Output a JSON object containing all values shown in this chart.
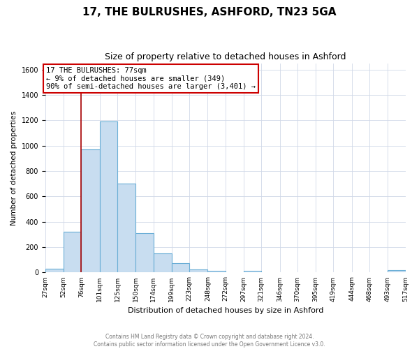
{
  "title": "17, THE BULRUSHES, ASHFORD, TN23 5GA",
  "subtitle": "Size of property relative to detached houses in Ashford",
  "xlabel": "Distribution of detached houses by size in Ashford",
  "ylabel": "Number of detached properties",
  "bin_edges": [
    27,
    52,
    76,
    101,
    125,
    150,
    174,
    199,
    223,
    248,
    272,
    297,
    321,
    346,
    370,
    395,
    419,
    444,
    468,
    493,
    517
  ],
  "bar_heights": [
    30,
    320,
    970,
    1190,
    700,
    310,
    150,
    75,
    25,
    15,
    0,
    15,
    0,
    0,
    0,
    0,
    0,
    0,
    0,
    20
  ],
  "bar_color": "#c8ddf0",
  "bar_edge_color": "#6aaed6",
  "property_line_x": 76,
  "property_line_color": "#aa0000",
  "annotation_text": "17 THE BULRUSHES: 77sqm\n← 9% of detached houses are smaller (349)\n90% of semi-detached houses are larger (3,401) →",
  "annotation_box_color": "#ffffff",
  "annotation_box_edge_color": "#cc0000",
  "ylim": [
    0,
    1650
  ],
  "yticks": [
    0,
    200,
    400,
    600,
    800,
    1000,
    1200,
    1400,
    1600
  ],
  "footer_text": "Contains HM Land Registry data © Crown copyright and database right 2024.\nContains public sector information licensed under the Open Government Licence v3.0.",
  "background_color": "#ffffff",
  "grid_color": "#d0d8e8"
}
